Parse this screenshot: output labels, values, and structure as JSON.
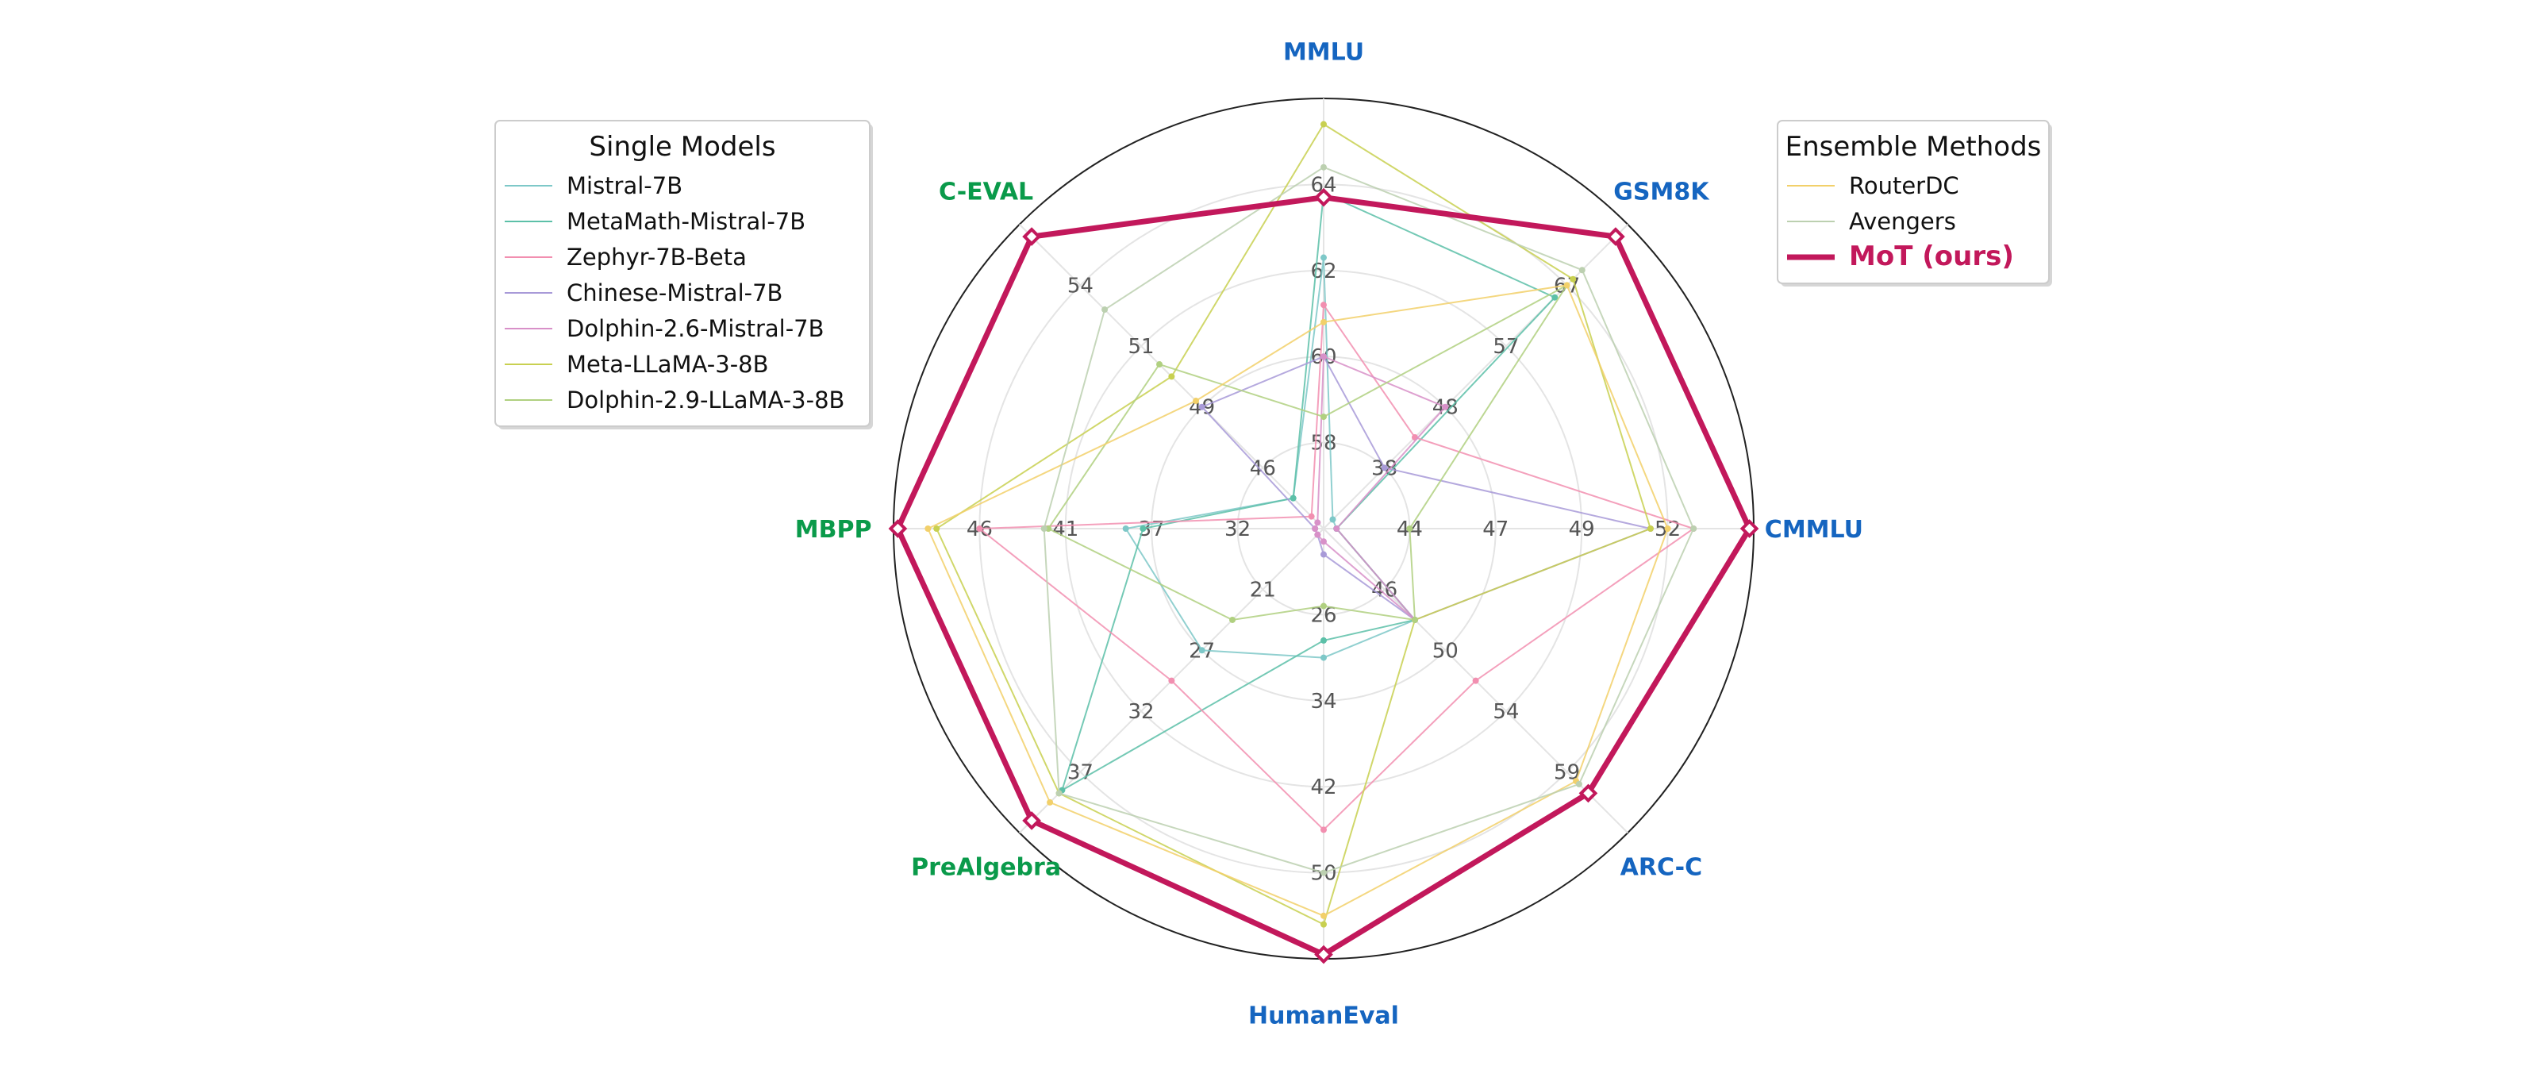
{
  "chart_data": {
    "type": "radar",
    "axes": [
      {
        "name": "MMLU",
        "color": "#1565c0",
        "ticks": [
          "58",
          "60",
          "62",
          "64"
        ]
      },
      {
        "name": "GSM8K",
        "color": "#1565c0",
        "ticks": [
          "38",
          "48",
          "57",
          "67"
        ]
      },
      {
        "name": "CMMLU",
        "color": "#1565c0",
        "ticks": [
          "44",
          "47",
          "49",
          "52"
        ]
      },
      {
        "name": "ARC-C",
        "color": "#1565c0",
        "ticks": [
          "46",
          "50",
          "54",
          "59"
        ]
      },
      {
        "name": "HumanEval",
        "color": "#1565c0",
        "ticks": [
          "26",
          "34",
          "42",
          "50"
        ]
      },
      {
        "name": "PreAlgebra",
        "color": "#0a9a4a",
        "ticks": [
          "21",
          "27",
          "32",
          "37"
        ]
      },
      {
        "name": "MBPP",
        "color": "#0a9a4a",
        "ticks": [
          "32",
          "37",
          "41",
          "46"
        ]
      },
      {
        "name": "C-EVAL",
        "color": "#0a9a4a",
        "ticks": [
          "46",
          "49",
          "51",
          "54"
        ]
      }
    ],
    "radial_range": [
      0,
      1
    ],
    "series": [
      {
        "name": "Mistral-7B",
        "group": "single",
        "color": "#7ec8c8",
        "values": [
          0.63,
          0.03,
          0.03,
          0.3,
          0.3,
          0.4,
          0.46,
          0.1
        ]
      },
      {
        "name": "MetaMath-Mistral-7B",
        "group": "single",
        "color": "#5cc0a8",
        "values": [
          0.78,
          0.76,
          0.03,
          0.3,
          0.26,
          0.86,
          0.42,
          0.1
        ]
      },
      {
        "name": "Zephyr-7B-Beta",
        "group": "single",
        "color": "#f28fb0",
        "values": [
          0.52,
          0.3,
          0.86,
          0.5,
          0.7,
          0.5,
          0.8,
          0.04
        ]
      },
      {
        "name": "Chinese-Mistral-7B",
        "group": "single",
        "color": "#a89ad8",
        "values": [
          0.4,
          0.2,
          0.76,
          0.3,
          0.06,
          0.02,
          0.02,
          0.4
        ]
      },
      {
        "name": "Dolphin-2.6-Mistral-7B",
        "group": "single",
        "color": "#d890c8",
        "values": [
          0.4,
          0.4,
          0.03,
          0.3,
          0.03,
          0.02,
          0.02,
          0.02
        ]
      },
      {
        "name": "Meta-LLaMA-3-8B",
        "group": "single",
        "color": "#c8d050",
        "values": [
          0.94,
          0.82,
          0.76,
          0.3,
          0.92,
          0.87,
          0.9,
          0.5
        ]
      },
      {
        "name": "Dolphin-2.9-LLaMA-3-8B",
        "group": "single",
        "color": "#b0d080",
        "values": [
          0.26,
          0.8,
          0.2,
          0.3,
          0.18,
          0.3,
          0.64,
          0.54
        ]
      },
      {
        "name": "RouterDC",
        "group": "ensemble",
        "color": "#f2d06a",
        "values": [
          0.48,
          0.8,
          0.8,
          0.83,
          0.9,
          0.9,
          0.92,
          0.42
        ]
      },
      {
        "name": "Avengers",
        "group": "ensemble",
        "color": "#bcd0b0",
        "values": [
          0.84,
          0.85,
          0.86,
          0.84,
          0.8,
          0.87,
          0.65,
          0.72
        ]
      },
      {
        "name": "MoT (ours)",
        "group": "ensemble",
        "color": "#c2185b",
        "highlight": true,
        "values": [
          0.77,
          0.96,
          0.99,
          0.87,
          0.99,
          0.96,
          0.99,
          0.96
        ]
      }
    ],
    "legends": [
      {
        "title": "Single Models",
        "group": "single",
        "placement": "upper-left"
      },
      {
        "title": "Ensemble Methods",
        "group": "ensemble",
        "placement": "upper-right"
      }
    ],
    "grid": true
  }
}
